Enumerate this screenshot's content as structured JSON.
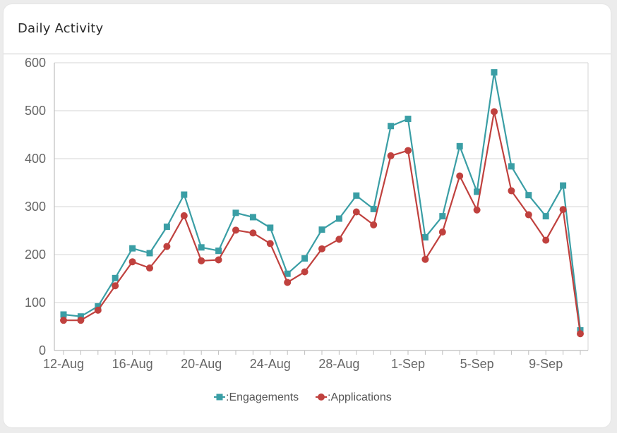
{
  "card": {
    "title": "Daily Activity"
  },
  "chart_data": {
    "type": "line",
    "title": "",
    "xlabel": "",
    "ylabel": "",
    "ylim": [
      0,
      600
    ],
    "yticks": [
      0,
      100,
      200,
      300,
      400,
      500,
      600
    ],
    "grid": true,
    "legend_position": "bottom",
    "x": [
      "12-Aug",
      "13-Aug",
      "14-Aug",
      "15-Aug",
      "16-Aug",
      "17-Aug",
      "18-Aug",
      "19-Aug",
      "20-Aug",
      "21-Aug",
      "22-Aug",
      "23-Aug",
      "24-Aug",
      "25-Aug",
      "26-Aug",
      "27-Aug",
      "28-Aug",
      "29-Aug",
      "30-Aug",
      "31-Aug",
      "1-Sep",
      "2-Sep",
      "3-Sep",
      "4-Sep",
      "5-Sep",
      "6-Sep",
      "7-Sep",
      "8-Sep",
      "9-Sep",
      "10-Sep",
      "11-Sep"
    ],
    "xtick_labels": [
      "12-Aug",
      "16-Aug",
      "20-Aug",
      "24-Aug",
      "28-Aug",
      "1-Sep",
      "5-Sep",
      "9-Sep"
    ],
    "series": [
      {
        "name": ":Engagements",
        "color": "#3a9ea5",
        "marker": "square",
        "values": [
          75,
          71,
          92,
          151,
          213,
          203,
          258,
          325,
          215,
          208,
          287,
          278,
          256,
          160,
          192,
          252,
          275,
          323,
          295,
          468,
          483,
          236,
          280,
          426,
          331,
          580,
          384,
          324,
          280,
          344,
          42
        ]
      },
      {
        "name": ":Applications",
        "color": "#c0413e",
        "marker": "circle",
        "values": [
          63,
          63,
          84,
          135,
          185,
          172,
          217,
          281,
          187,
          189,
          251,
          245,
          223,
          142,
          164,
          212,
          232,
          289,
          262,
          406,
          417,
          190,
          247,
          364,
          293,
          498,
          333,
          283,
          230,
          294,
          35
        ]
      }
    ]
  }
}
